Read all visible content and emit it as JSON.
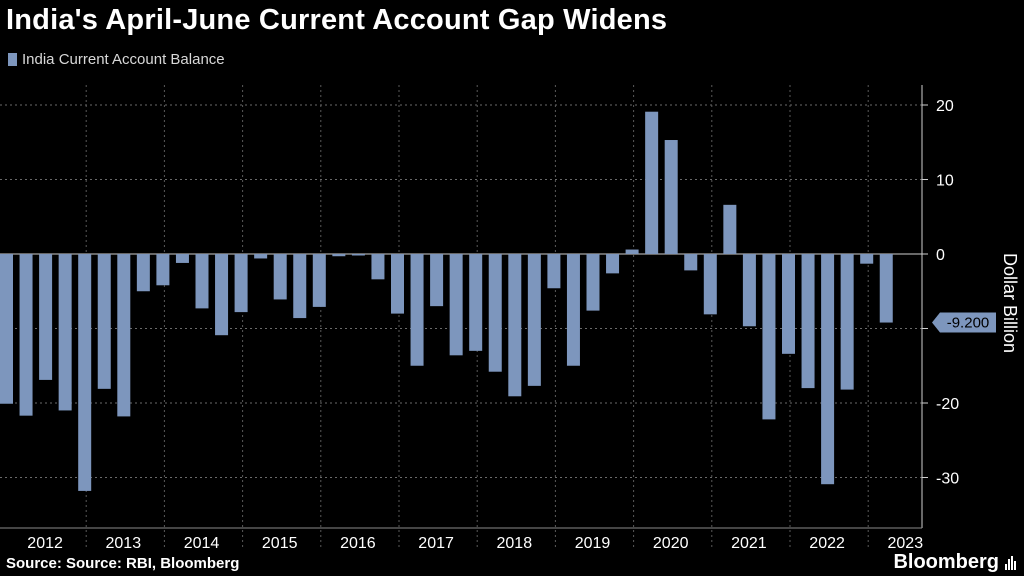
{
  "chart_data": {
    "type": "bar",
    "title": "India's April-June Current Account Gap Widens",
    "series": [
      {
        "name": "India Current Account Balance",
        "color": "#7d96bd",
        "values": [
          -20.1,
          -21.7,
          -16.9,
          -21.0,
          -31.8,
          -18.1,
          -21.8,
          -5.0,
          -4.2,
          -1.2,
          -7.3,
          -10.9,
          -7.8,
          -0.6,
          -6.1,
          -8.6,
          -7.1,
          -0.3,
          -0.2,
          -3.4,
          -8.0,
          -15.0,
          -7.0,
          -13.6,
          -13.0,
          -15.8,
          -19.1,
          -17.7,
          -4.6,
          -15.0,
          -7.6,
          -2.6,
          0.6,
          19.1,
          15.3,
          -2.2,
          -8.1,
          6.6,
          -9.7,
          -22.2,
          -13.4,
          -18.0,
          -30.9,
          -18.2,
          -1.3,
          -9.2
        ]
      }
    ],
    "years": [
      "2012",
      "2013",
      "2014",
      "2015",
      "2016",
      "2017",
      "2018",
      "2019",
      "2020",
      "2021",
      "2022",
      "2023"
    ],
    "ylabel": "Dollar Billion",
    "ylim": [
      -37,
      23
    ],
    "yticks": [
      "20",
      "10",
      "0",
      "-20",
      "-30"
    ],
    "callout_label": "-9.200",
    "callout_value": -9.2
  },
  "legend": {
    "label": "India Current Account Balance"
  },
  "footer": {
    "source": "Source: Source: RBI, Bloomberg",
    "brand": "Bloomberg"
  }
}
